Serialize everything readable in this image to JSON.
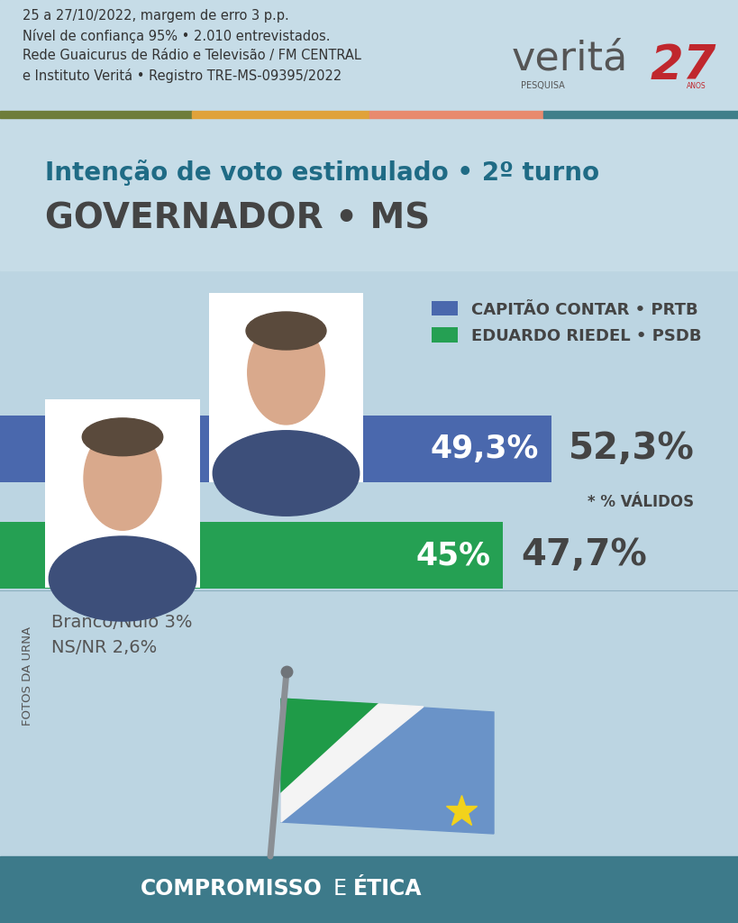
{
  "header": {
    "lines": [
      "25 a 27/10/2022, margem de erro 3 p.p.",
      "Nível de confiança 95% • 2.010 entrevistados.",
      "Rede Guaicurus de Rádio e Televisão / FM CENTRAL",
      "e Instituto Veritá • Registro TRE-MS-09395/2022"
    ],
    "logo": {
      "name": "veritá",
      "tagline": "PESQUISA",
      "years": "27",
      "years_label": "ANOS"
    }
  },
  "chart_data": {
    "type": "bar",
    "orientation": "horizontal",
    "title": "Intenção de voto estimulado • 2º turno",
    "subtitle": "GOVERNADOR • MS",
    "categories": [
      "CAPITÃO CONTAR • PRTB",
      "EDUARDO RIEDEL • PSDB"
    ],
    "values": [
      49.3,
      45
    ],
    "value_labels": [
      "49,3%",
      "45%"
    ],
    "valid_values": [
      52.3,
      47.7
    ],
    "valid_value_labels": [
      "52,3%",
      "47,7%"
    ],
    "valid_note": "* % VÁLIDOS",
    "colors": [
      "#4a68ad",
      "#25a053"
    ],
    "xlim": [
      0,
      66
    ],
    "legend": "upper right",
    "data_labels": true,
    "tick_labels": false,
    "grid": false,
    "other_responses": [
      "Branco/Nulo 3%",
      "NS/NR 2,6%"
    ],
    "photo_credit": "FOTOS DA URNA"
  },
  "footer": {
    "left": "COMPROMISSO",
    "middle": "E",
    "right": "ÉTICA"
  }
}
